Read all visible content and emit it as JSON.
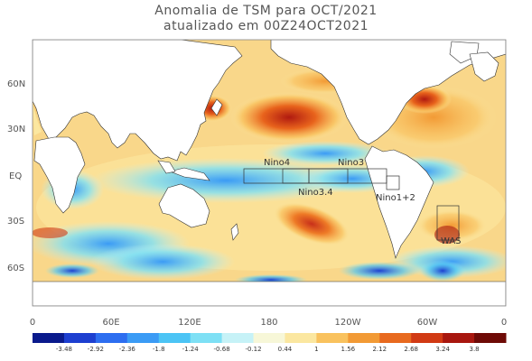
{
  "title": "Anomalia de TSM para OCT/2021",
  "subtitle": "atualizado em 00Z24OCT2021",
  "map": {
    "lat_labels": [
      "60N",
      "30N",
      "EQ",
      "30S",
      "60S"
    ],
    "lon_labels": [
      "0",
      "60E",
      "120E",
      "180",
      "120W",
      "60W",
      "0"
    ],
    "regions": [
      {
        "name": "Nino4",
        "lon": [
          160,
          210
        ],
        "lat": [
          -5,
          5
        ]
      },
      {
        "name": "Nino3",
        "lon": [
          210,
          270
        ],
        "lat": [
          -5,
          5
        ]
      },
      {
        "name": "Nino3.4",
        "lon": [
          190,
          240
        ],
        "lat": [
          -5,
          5
        ]
      },
      {
        "name": "Nino1+2",
        "lon": [
          270,
          280
        ],
        "lat": [
          -10,
          0
        ]
      },
      {
        "name": "WAS",
        "lon": [
          310,
          320
        ],
        "lat": [
          -45,
          -25
        ]
      }
    ]
  },
  "colorbar": {
    "ticks": [
      "-3.48",
      "-2.92",
      "-2.36",
      "-1.8",
      "-1.24",
      "-0.68",
      "-0.12",
      "0.44",
      "1",
      "1.56",
      "2.12",
      "2.68",
      "3.24",
      "3.8"
    ],
    "colors": [
      "#0a1a8c",
      "#1d3fd0",
      "#2d6ef0",
      "#3b9bf5",
      "#4cc4f5",
      "#7ee0f5",
      "#c6f2f7",
      "#f7f7d8",
      "#fbe7a0",
      "#f9c25e",
      "#f29a35",
      "#e86a1f",
      "#d13a14",
      "#a8170f",
      "#6e0a06"
    ]
  }
}
